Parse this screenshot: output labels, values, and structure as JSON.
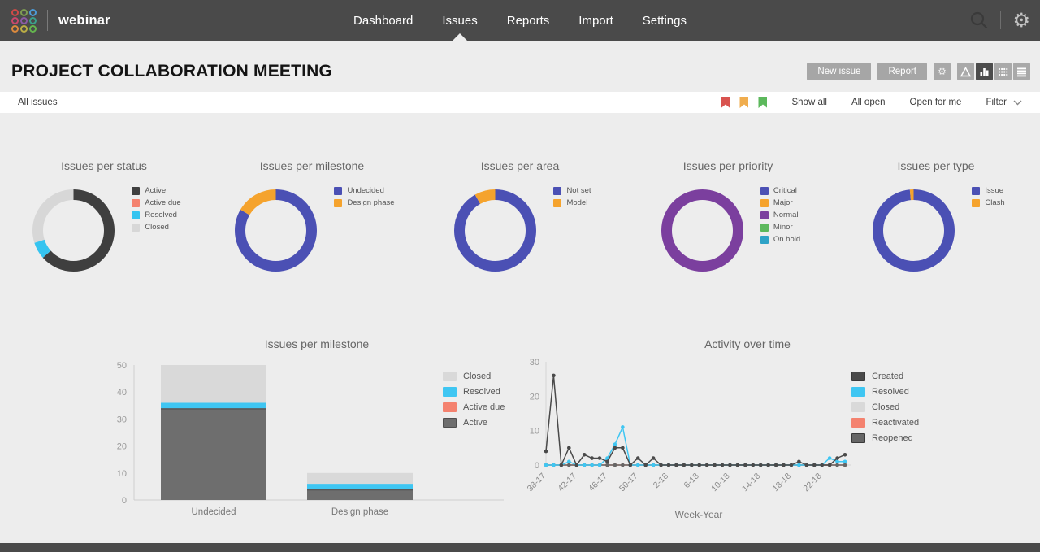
{
  "header": {
    "brand": "webinar",
    "nav": [
      {
        "label": "Dashboard",
        "active": false
      },
      {
        "label": "Issues",
        "active": true
      },
      {
        "label": "Reports",
        "active": false
      },
      {
        "label": "Import",
        "active": false
      },
      {
        "label": "Settings",
        "active": false
      }
    ],
    "logo_colors": [
      "#cf4a47",
      "#7e9e52",
      "#4d9bd6",
      "#c9476d",
      "#8b5ba6",
      "#3ba08b",
      "#dc8a3d",
      "#bcae45",
      "#64b54e"
    ]
  },
  "toolbar": {
    "title": "PROJECT COLLABORATION MEETING",
    "buttons": [
      "New issue",
      "Report"
    ],
    "view_modes": [
      "triangle",
      "bar-chart",
      "grid",
      "list"
    ],
    "active_view": "bar-chart"
  },
  "filterbar": {
    "left_label": "All issues",
    "flag_colors": [
      "#d9534f",
      "#f0ad4e",
      "#5cb85c"
    ],
    "links": [
      "Show all",
      "All open",
      "Open for me"
    ],
    "filter_label": "Filter"
  },
  "chart_data": [
    {
      "type": "pie",
      "title": "Issues per status",
      "labels": [
        "Active",
        "Active due",
        "Resolved",
        "Closed"
      ],
      "values": [
        38,
        0,
        4,
        18
      ],
      "colors": [
        "#3f3f3f",
        "#f4826f",
        "#35c4f0",
        "#d7d7d7"
      ]
    },
    {
      "type": "pie",
      "title": "Issues per milestone",
      "labels": [
        "Undecided",
        "Design phase"
      ],
      "values": [
        50,
        10
      ],
      "colors": [
        "#4b50b4",
        "#f5a32d"
      ]
    },
    {
      "type": "pie",
      "title": "Issues per area",
      "labels": [
        "Not set",
        "Model"
      ],
      "values": [
        55,
        5
      ],
      "colors": [
        "#4b50b4",
        "#f5a32d"
      ]
    },
    {
      "type": "pie",
      "title": "Issues per priority",
      "labels": [
        "Critical",
        "Major",
        "Normal",
        "Minor",
        "On hold"
      ],
      "values": [
        0,
        0,
        60,
        0,
        0
      ],
      "colors": [
        "#4b50b4",
        "#f5a32d",
        "#7b3f9e",
        "#5cb85c",
        "#2fa3c7"
      ]
    },
    {
      "type": "pie",
      "title": "Issues per type",
      "labels": [
        "Issue",
        "Clash"
      ],
      "values": [
        59,
        1
      ],
      "colors": [
        "#4b50b4",
        "#f5a32d"
      ]
    },
    {
      "type": "bar",
      "title": "Issues per milestone",
      "categories": [
        "Undecided",
        "Design phase"
      ],
      "ylim": [
        0,
        50
      ],
      "yticks": [
        0,
        10,
        20,
        30,
        40,
        50
      ],
      "series": [
        {
          "name": "Active",
          "color": "#6e6e6e",
          "cap": true,
          "values": [
            34,
            4
          ]
        },
        {
          "name": "Active due",
          "color": "#f4826f",
          "values": [
            0,
            0
          ]
        },
        {
          "name": "Resolved",
          "color": "#3fc6f2",
          "values": [
            2,
            2
          ]
        },
        {
          "name": "Closed",
          "color": "#d9d9d9",
          "values": [
            14,
            4
          ]
        }
      ],
      "legend": [
        {
          "label": "Closed",
          "color": "#d9d9d9"
        },
        {
          "label": "Resolved",
          "color": "#3fc6f2"
        },
        {
          "label": "Active due",
          "color": "#f4826f"
        },
        {
          "label": "Active",
          "color": "#6e6e6e",
          "border": "#4f4f4f"
        }
      ]
    },
    {
      "type": "line",
      "title": "Activity over time",
      "xlabel": "Week-Year",
      "x_ticks": [
        "38-17",
        "42-17",
        "46-17",
        "50-17",
        "2-18",
        "6-18",
        "10-18",
        "14-18",
        "18-18",
        "22-18"
      ],
      "tick_every": 4,
      "n_points": 40,
      "ylim": [
        0,
        30
      ],
      "yticks": [
        0,
        10,
        20,
        30
      ],
      "z_order": [
        2,
        3,
        4,
        1,
        0
      ],
      "series": [
        {
          "name": "Created",
          "color": "#4a4a4a",
          "values": [
            4,
            26,
            0,
            5,
            0,
            3,
            2,
            2,
            1,
            5,
            5,
            0,
            2,
            0,
            2,
            0,
            0,
            0,
            0,
            0,
            0,
            0,
            0,
            0,
            0,
            0,
            0,
            0,
            0,
            0,
            0,
            0,
            0,
            1,
            0,
            0,
            0,
            0,
            2,
            3
          ]
        },
        {
          "name": "Resolved",
          "color": "#3fc6f2",
          "values": [
            0,
            0,
            0,
            1,
            0,
            0,
            0,
            0,
            2,
            6,
            11,
            0,
            0,
            0,
            0,
            0,
            0,
            0,
            0,
            0,
            0,
            0,
            0,
            0,
            0,
            0,
            0,
            0,
            0,
            0,
            0,
            0,
            0,
            0,
            0,
            0,
            0,
            2,
            1,
            1
          ]
        },
        {
          "name": "Closed",
          "color": "#d9d9d9",
          "values": [
            0,
            0,
            0,
            0,
            0,
            0,
            0,
            0,
            0,
            0,
            0,
            0,
            0,
            0,
            0,
            0,
            0,
            0,
            0,
            0,
            0,
            0,
            0,
            0,
            0,
            0,
            0,
            0,
            0,
            0,
            0,
            0,
            0,
            0,
            0,
            0,
            0,
            0,
            0,
            0
          ]
        },
        {
          "name": "Reactivated",
          "color": "#f4826f",
          "values": [
            0,
            0,
            0,
            0,
            0,
            0,
            0,
            0,
            0,
            0,
            0,
            0,
            0,
            0,
            0,
            0,
            0,
            0,
            0,
            0,
            0,
            0,
            0,
            0,
            0,
            0,
            0,
            0,
            0,
            0,
            0,
            0,
            0,
            0,
            0,
            0,
            0,
            0,
            0,
            0
          ]
        },
        {
          "name": "Reopened",
          "color": "#666666",
          "values": [
            0,
            0,
            0,
            0,
            0,
            0,
            0,
            0,
            0,
            0,
            0,
            0,
            0,
            0,
            0,
            0,
            0,
            0,
            0,
            0,
            0,
            0,
            0,
            0,
            0,
            0,
            0,
            0,
            0,
            0,
            0,
            0,
            0,
            0,
            0,
            0,
            0,
            0,
            0,
            0
          ]
        }
      ],
      "legend": [
        {
          "label": "Created",
          "color": "#4a4a4a",
          "border": "#3a3a3a"
        },
        {
          "label": "Resolved",
          "color": "#3fc6f2"
        },
        {
          "label": "Closed",
          "color": "#d9d9d9"
        },
        {
          "label": "Reactivated",
          "color": "#f4826f"
        },
        {
          "label": "Reopened",
          "color": "#666666",
          "border": "#3a3a3a"
        }
      ]
    }
  ]
}
